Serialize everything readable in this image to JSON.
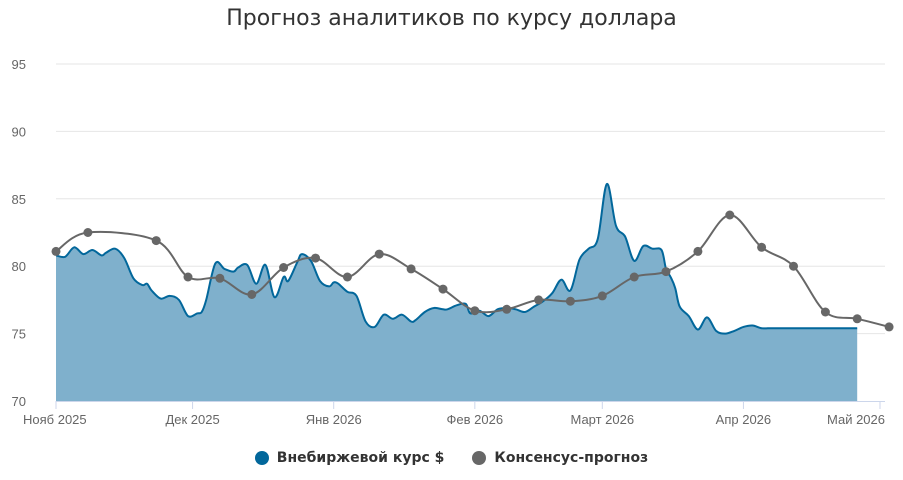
{
  "chart_data": {
    "type": "area",
    "title": "Прогноз аналитиков по курсу доллара",
    "xlabel": "",
    "ylabel": "",
    "ylim": [
      70,
      95
    ],
    "y_ticks": [
      70,
      75,
      80,
      85,
      90,
      95
    ],
    "x_range": [
      "2025-11-01",
      "2026-05-01"
    ],
    "x_ticks": [
      {
        "date": "2025-11-01",
        "label": "Нояб 2025"
      },
      {
        "date": "2025-12-01",
        "label": "Дек 2025"
      },
      {
        "date": "2026-01-01",
        "label": "Янв 2026"
      },
      {
        "date": "2026-02-01",
        "label": "Фев 2026"
      },
      {
        "date": "2026-03-01",
        "label": "Март 2026"
      },
      {
        "date": "2026-04-01",
        "label": "Апр 2026"
      },
      {
        "date": "2026-05-01",
        "label": "Май 2026"
      }
    ],
    "grid": true,
    "legend": "bottom",
    "series": [
      {
        "name": "Внебиржевой курс $",
        "type": "area",
        "color": "#02679b",
        "fill": "#7fb0cc",
        "x": [
          "2025-11-01",
          "2025-11-03",
          "2025-11-05",
          "2025-11-07",
          "2025-11-09",
          "2025-11-11",
          "2025-11-12",
          "2025-11-14",
          "2025-11-16",
          "2025-11-18",
          "2025-11-20",
          "2025-11-21",
          "2025-11-22",
          "2025-11-24",
          "2025-11-26",
          "2025-11-28",
          "2025-11-30",
          "2025-12-02",
          "2025-12-03",
          "2025-12-04",
          "2025-12-06",
          "2025-12-08",
          "2025-12-10",
          "2025-12-11",
          "2025-12-13",
          "2025-12-15",
          "2025-12-17",
          "2025-12-19",
          "2025-12-21",
          "2025-12-22",
          "2025-12-24",
          "2025-12-25",
          "2025-12-27",
          "2025-12-29",
          "2025-12-31",
          "2026-01-01",
          "2026-01-02",
          "2026-01-04",
          "2026-01-06",
          "2026-01-08",
          "2026-01-10",
          "2026-01-12",
          "2026-01-14",
          "2026-01-16",
          "2026-01-18",
          "2026-01-19",
          "2026-01-21",
          "2026-01-23",
          "2026-01-25",
          "2026-01-26",
          "2026-01-28",
          "2026-01-30",
          "2026-01-31",
          "2026-02-02",
          "2026-02-04",
          "2026-02-06",
          "2026-02-08",
          "2026-02-10",
          "2026-02-12",
          "2026-02-14",
          "2026-02-16",
          "2026-02-18",
          "2026-02-20",
          "2026-02-22",
          "2026-02-24",
          "2026-02-26",
          "2026-02-28",
          "2026-03-02",
          "2026-03-04",
          "2026-03-06",
          "2026-03-08",
          "2026-03-10",
          "2026-03-12",
          "2026-03-14",
          "2026-03-15",
          "2026-03-16",
          "2026-03-17",
          "2026-03-18",
          "2026-03-20",
          "2026-03-22",
          "2026-03-24",
          "2026-03-26",
          "2026-03-28",
          "2026-03-30",
          "2026-04-01",
          "2026-04-03",
          "2026-04-05",
          "2026-04-07",
          "2026-04-09",
          "2026-04-11",
          "2026-04-13",
          "2026-04-15",
          "2026-04-17",
          "2026-04-19",
          "2026-04-21",
          "2026-04-23",
          "2026-04-25",
          "2026-04-26"
        ],
        "values": [
          80.8,
          80.7,
          81.4,
          80.9,
          81.2,
          80.8,
          81.0,
          81.3,
          80.6,
          79.1,
          78.6,
          78.7,
          78.2,
          77.6,
          77.8,
          77.5,
          76.3,
          76.5,
          76.6,
          77.5,
          80.2,
          79.8,
          79.6,
          79.9,
          80.1,
          78.7,
          80.1,
          77.7,
          79.2,
          78.9,
          80.3,
          80.9,
          80.4,
          78.9,
          78.5,
          78.8,
          78.7,
          78.1,
          77.8,
          75.9,
          75.5,
          76.4,
          76.1,
          76.4,
          75.9,
          76.0,
          76.6,
          76.9,
          76.8,
          76.8,
          77.1,
          77.2,
          76.5,
          76.7,
          76.3,
          76.8,
          76.9,
          76.8,
          76.6,
          77.0,
          77.4,
          78.0,
          79.0,
          78.2,
          80.5,
          81.3,
          82.0,
          86.1,
          83.0,
          82.2,
          80.4,
          81.5,
          81.3,
          81.2,
          79.8,
          79.2,
          78.4,
          77.0,
          76.3,
          75.3,
          76.2,
          75.2,
          75.0,
          75.2,
          75.5,
          75.6,
          75.4,
          75.4,
          75.4,
          75.4,
          75.4,
          75.4,
          75.4,
          75.4,
          75.4,
          75.4,
          75.4,
          75.4
        ]
      },
      {
        "name": "Консенсус-прогноз",
        "type": "line",
        "color": "#676767",
        "x": [
          "2025-11-01",
          "2025-11-08",
          "2025-11-23",
          "2025-11-30",
          "2025-12-07",
          "2025-12-14",
          "2025-12-21",
          "2025-12-28",
          "2026-01-04",
          "2026-01-11",
          "2026-01-18",
          "2026-01-25",
          "2026-02-01",
          "2026-02-08",
          "2026-02-15",
          "2026-02-22",
          "2026-03-01",
          "2026-03-08",
          "2026-03-15",
          "2026-03-22",
          "2026-03-29",
          "2026-04-05",
          "2026-04-12",
          "2026-04-19",
          "2026-04-26",
          "2026-05-03"
        ],
        "values": [
          81.1,
          82.5,
          81.9,
          79.2,
          79.1,
          77.9,
          79.9,
          80.6,
          79.2,
          80.9,
          79.8,
          78.3,
          76.7,
          76.8,
          77.5,
          77.4,
          77.8,
          79.2,
          79.6,
          81.1,
          83.8,
          81.4,
          80.0,
          76.6,
          76.1,
          75.5
        ]
      }
    ]
  }
}
